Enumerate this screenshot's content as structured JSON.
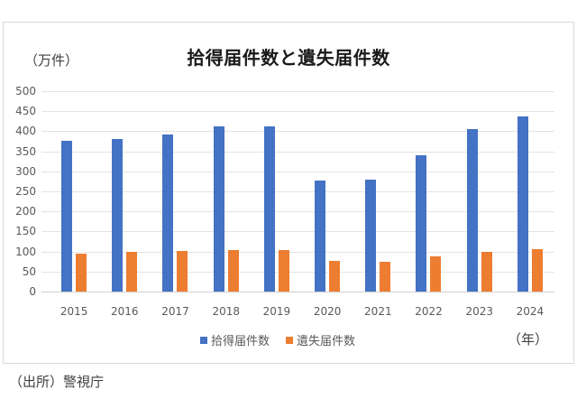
{
  "chart": {
    "title": "拾得届件数と遺失届件数",
    "y_unit": "（万件）",
    "x_unit": "（年）",
    "source": "（出所）警視庁"
  },
  "yticks": [
    "500",
    "450",
    "400",
    "350",
    "300",
    "250",
    "200",
    "150",
    "100",
    "50",
    "0"
  ],
  "legend": [
    {
      "label": "拾得届件数",
      "color": "#4472c4"
    },
    {
      "label": "遺失届件数",
      "color": "#ed7d31"
    }
  ],
  "chart_data": {
    "type": "bar",
    "title": "拾得届件数と遺失届件数",
    "xlabel": "（年）",
    "ylabel": "（万件）",
    "ylim": [
      0,
      500
    ],
    "yticks": [
      0,
      50,
      100,
      150,
      200,
      250,
      300,
      350,
      400,
      450,
      500
    ],
    "grid": true,
    "legend_position": "bottom",
    "categories": [
      "2015",
      "2016",
      "2017",
      "2018",
      "2019",
      "2020",
      "2021",
      "2022",
      "2023",
      "2024"
    ],
    "series": [
      {
        "name": "拾得届件数",
        "color": "#4472c4",
        "values": [
          376,
          381,
          392,
          412,
          412,
          277,
          280,
          340,
          405,
          437
        ]
      },
      {
        "name": "遺失届件数",
        "color": "#ed7d31",
        "values": [
          95,
          99,
          101,
          104,
          104,
          77,
          74,
          88,
          100,
          106
        ]
      }
    ]
  }
}
